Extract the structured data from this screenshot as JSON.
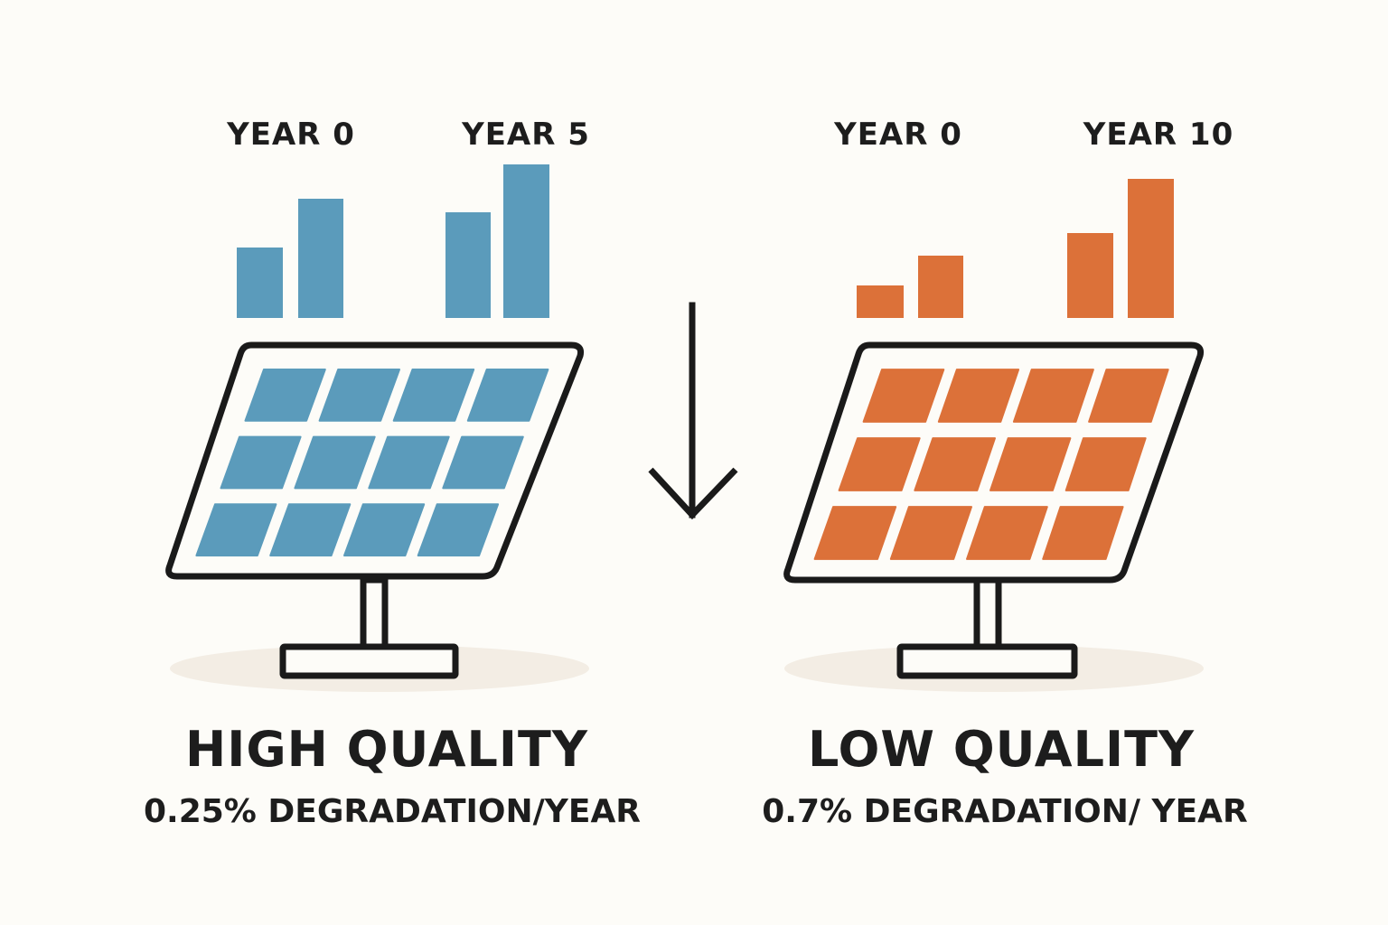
{
  "colors": {
    "background": "#fdfcf8",
    "high_quality": "#5b9bbb",
    "low_quality": "#dc7139",
    "outline": "#1a1a1a",
    "shadow": "#f3ede4"
  },
  "left_panel": {
    "year_start_label": "YEAR 0",
    "year_end_label": "YEAR 5",
    "title": "HIGH QUALITY",
    "subtitle": "0.25% DEGRADATION/YEAR",
    "bar_group_icon": "bar-chart-icon",
    "panel_icon": "solar-panel-icon"
  },
  "right_panel": {
    "year_start_label": "YEAR 0",
    "year_end_label": "YEAR 10",
    "title": "LOW QUALITY",
    "subtitle": "0.7% DEGRADATION/ YEAR",
    "bar_group_icon": "bar-chart-icon",
    "panel_icon": "solar-panel-icon"
  },
  "center_icon": "down-arrow-icon"
}
